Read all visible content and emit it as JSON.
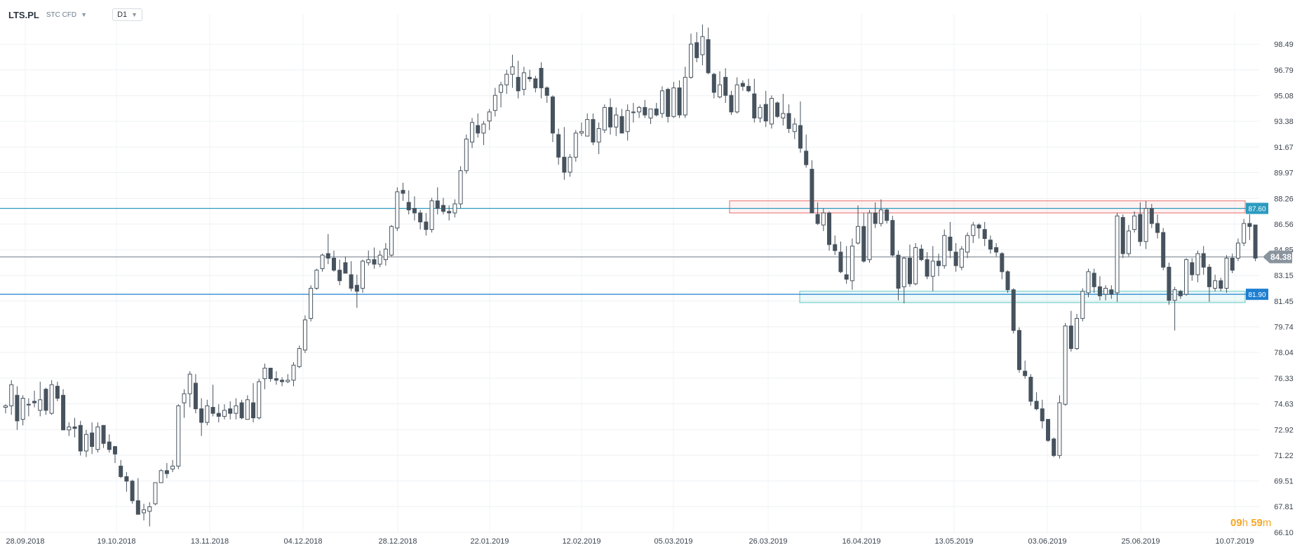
{
  "header": {
    "symbol": "LTS.PL",
    "instrument_type": "STC CFD",
    "timeframe": "D1"
  },
  "countdown": {
    "hours": "09",
    "h_unit": "h",
    "minutes": "59",
    "m_unit": "m"
  },
  "colors": {
    "bear": "#46525d",
    "bull_fill": "#ffffff",
    "bull_stroke": "#46525d",
    "line_87_60": "#2b9bbf",
    "line_81_90": "#1e7fd1",
    "current_line": "#8a949e",
    "resistance_zone": "#e86a6a",
    "support_zone": "#5cc7c0",
    "countdown": "#f5a623"
  },
  "chart_data": {
    "type": "candlestick",
    "ylim": [
      66.1,
      100.5
    ],
    "y_ticks": [
      "98.49",
      "96.79",
      "95.08",
      "93.38",
      "91.67",
      "89.97",
      "88.26",
      "86.56",
      "84.85",
      "83.15",
      "81.45",
      "79.74",
      "78.04",
      "76.33",
      "74.63",
      "72.92",
      "71.22",
      "69.51",
      "67.81",
      "66.10"
    ],
    "x_ticks": [
      "28.09.2018",
      "19.10.2018",
      "13.11.2018",
      "04.12.2018",
      "28.12.2018",
      "22.01.2019",
      "12.02.2019",
      "05.03.2019",
      "26.03.2019",
      "16.04.2019",
      "13.05.2019",
      "03.06.2019",
      "25.06.2019",
      "10.07.2019"
    ],
    "horizontal_lines": [
      {
        "label": "87.60",
        "value": 87.6
      },
      {
        "label": "81.90",
        "value": 81.9
      }
    ],
    "current_price": {
      "label": "84.38",
      "value": 84.38
    },
    "zones": [
      {
        "name": "resistance",
        "from": 87.3,
        "to": 88.1
      },
      {
        "name": "support",
        "from": 81.35,
        "to": 82.1
      }
    ],
    "candles": [
      [
        74.4,
        74.6,
        74.0,
        74.5
      ],
      [
        74.5,
        76.2,
        73.9,
        75.9
      ],
      [
        75.2,
        75.8,
        72.9,
        73.5
      ],
      [
        73.6,
        75.2,
        73.2,
        75.0
      ],
      [
        74.6,
        75.0,
        73.8,
        74.6
      ],
      [
        74.8,
        75.5,
        74.4,
        74.7
      ],
      [
        74.2,
        76.1,
        73.8,
        74.9
      ],
      [
        75.6,
        75.7,
        73.9,
        74.2
      ],
      [
        74.0,
        76.2,
        73.9,
        75.9
      ],
      [
        75.8,
        76.1,
        74.8,
        75.0
      ],
      [
        75.2,
        75.6,
        72.9,
        72.9
      ],
      [
        72.9,
        73.4,
        72.5,
        73.1
      ],
      [
        73.1,
        73.7,
        72.4,
        73.0
      ],
      [
        73.2,
        73.5,
        71.2,
        71.5
      ],
      [
        71.5,
        72.9,
        71.1,
        72.6
      ],
      [
        72.7,
        73.4,
        71.3,
        71.8
      ],
      [
        71.6,
        73.4,
        71.4,
        73.1
      ],
      [
        73.2,
        73.2,
        71.7,
        72.0
      ],
      [
        72.1,
        72.6,
        71.4,
        71.6
      ],
      [
        71.8,
        71.8,
        70.7,
        71.3
      ],
      [
        70.5,
        70.9,
        69.7,
        69.8
      ],
      [
        69.8,
        70.1,
        68.8,
        69.5
      ],
      [
        69.5,
        69.6,
        68.0,
        68.2
      ],
      [
        68.2,
        69.7,
        67.3,
        67.3
      ],
      [
        67.4,
        68.0,
        66.9,
        67.6
      ],
      [
        67.5,
        68.1,
        66.5,
        67.8
      ],
      [
        68.0,
        69.4,
        67.9,
        69.4
      ],
      [
        69.4,
        70.3,
        69.4,
        70.2
      ],
      [
        70.2,
        70.7,
        69.7,
        70.0
      ],
      [
        70.3,
        70.9,
        70.1,
        70.5
      ],
      [
        70.5,
        74.6,
        70.3,
        74.5
      ],
      [
        74.7,
        75.6,
        73.7,
        75.3
      ],
      [
        75.3,
        76.8,
        74.4,
        76.6
      ],
      [
        76.0,
        76.6,
        74.0,
        74.3
      ],
      [
        74.3,
        75.0,
        72.5,
        73.4
      ],
      [
        73.4,
        74.9,
        73.2,
        74.5
      ],
      [
        74.4,
        75.9,
        73.8,
        74.0
      ],
      [
        74.0,
        74.6,
        73.4,
        73.8
      ],
      [
        73.8,
        74.6,
        73.6,
        74.2
      ],
      [
        74.3,
        74.8,
        73.6,
        74.0
      ],
      [
        74.0,
        75.0,
        73.6,
        74.5
      ],
      [
        74.7,
        74.9,
        73.6,
        73.7
      ],
      [
        73.6,
        75.2,
        73.6,
        74.9
      ],
      [
        74.7,
        76.0,
        73.4,
        73.7
      ],
      [
        73.7,
        76.3,
        73.6,
        76.1
      ],
      [
        76.3,
        77.3,
        75.6,
        77.0
      ],
      [
        77.0,
        77.0,
        76.1,
        76.3
      ],
      [
        76.3,
        76.8,
        75.9,
        76.2
      ],
      [
        76.2,
        76.4,
        75.8,
        76.1
      ],
      [
        76.1,
        76.6,
        76.0,
        76.2
      ],
      [
        76.2,
        77.4,
        75.8,
        77.2
      ],
      [
        77.1,
        78.5,
        77.0,
        78.3
      ],
      [
        78.2,
        80.5,
        78.0,
        80.2
      ],
      [
        80.3,
        82.5,
        80.1,
        82.3
      ],
      [
        82.3,
        83.6,
        82.2,
        83.5
      ],
      [
        83.6,
        84.6,
        83.4,
        84.5
      ],
      [
        84.6,
        85.9,
        83.9,
        84.3
      ],
      [
        84.3,
        84.8,
        83.4,
        83.5
      ],
      [
        83.5,
        84.2,
        82.5,
        82.8
      ],
      [
        84.0,
        84.4,
        83.4,
        83.3
      ],
      [
        83.2,
        84.1,
        82.1,
        82.3
      ],
      [
        82.5,
        83.2,
        81.0,
        82.1
      ],
      [
        82.3,
        84.2,
        82.0,
        84.1
      ],
      [
        84.0,
        84.8,
        83.8,
        84.2
      ],
      [
        84.2,
        85.0,
        83.6,
        83.9
      ],
      [
        83.9,
        84.8,
        83.7,
        84.5
      ],
      [
        84.2,
        85.3,
        83.8,
        84.9
      ],
      [
        84.5,
        86.5,
        84.4,
        86.4
      ],
      [
        86.3,
        89.0,
        86.1,
        88.7
      ],
      [
        88.8,
        89.3,
        88.1,
        88.6
      ],
      [
        88.0,
        88.8,
        87.2,
        87.5
      ],
      [
        87.6,
        88.4,
        86.8,
        87.3
      ],
      [
        87.3,
        87.5,
        86.2,
        86.7
      ],
      [
        86.7,
        87.3,
        85.8,
        86.2
      ],
      [
        86.2,
        88.3,
        86.0,
        88.1
      ],
      [
        88.1,
        89.0,
        87.2,
        87.6
      ],
      [
        87.8,
        88.3,
        87.2,
        87.4
      ],
      [
        87.4,
        87.8,
        86.8,
        87.3
      ],
      [
        87.3,
        88.2,
        87.0,
        87.9
      ],
      [
        87.9,
        90.4,
        87.6,
        90.1
      ],
      [
        90.1,
        92.5,
        89.9,
        92.2
      ],
      [
        92.0,
        93.6,
        91.6,
        93.3
      ],
      [
        93.1,
        93.9,
        92.3,
        92.6
      ],
      [
        92.6,
        93.4,
        91.8,
        93.2
      ],
      [
        93.4,
        94.2,
        92.8,
        94.0
      ],
      [
        94.1,
        95.6,
        93.7,
        95.1
      ],
      [
        95.3,
        96.0,
        94.3,
        95.8
      ],
      [
        95.8,
        96.8,
        95.2,
        96.5
      ],
      [
        96.5,
        97.8,
        95.6,
        97.0
      ],
      [
        96.3,
        97.4,
        94.9,
        95.4
      ],
      [
        95.5,
        97.0,
        95.1,
        96.6
      ],
      [
        96.3,
        96.8,
        96.0,
        96.2
      ],
      [
        96.2,
        96.4,
        95.3,
        95.6
      ],
      [
        96.9,
        97.3,
        94.9,
        95.6
      ],
      [
        95.6,
        95.7,
        94.6,
        95.1
      ],
      [
        95.0,
        95.1,
        92.0,
        92.6
      ],
      [
        92.5,
        92.9,
        90.5,
        91.0
      ],
      [
        91.0,
        93.0,
        89.5,
        90.0
      ],
      [
        90.0,
        91.2,
        89.7,
        91.0
      ],
      [
        91.0,
        92.8,
        90.7,
        92.6
      ],
      [
        92.6,
        93.3,
        92.4,
        92.7
      ],
      [
        92.4,
        93.9,
        92.4,
        93.5
      ],
      [
        93.5,
        93.9,
        91.8,
        92.0
      ],
      [
        92.0,
        93.3,
        91.2,
        92.9
      ],
      [
        92.8,
        94.5,
        92.6,
        94.3
      ],
      [
        94.3,
        94.9,
        92.5,
        93.0
      ],
      [
        93.0,
        94.3,
        92.4,
        93.8
      ],
      [
        93.7,
        94.2,
        92.6,
        92.6
      ],
      [
        92.7,
        94.5,
        92.1,
        94.1
      ],
      [
        94.0,
        94.6,
        93.3,
        94.0
      ],
      [
        94.0,
        94.4,
        93.6,
        94.3
      ],
      [
        94.3,
        94.8,
        93.6,
        93.8
      ],
      [
        93.6,
        94.1,
        93.2,
        94.2
      ],
      [
        94.2,
        94.6,
        93.7,
        93.8
      ],
      [
        93.9,
        95.7,
        93.6,
        95.4
      ],
      [
        95.5,
        95.6,
        93.3,
        93.7
      ],
      [
        93.7,
        96.0,
        93.6,
        95.6
      ],
      [
        95.6,
        96.1,
        93.6,
        93.8
      ],
      [
        93.8,
        97.0,
        93.6,
        96.3
      ],
      [
        96.3,
        99.2,
        96.2,
        98.5
      ],
      [
        98.6,
        99.3,
        97.3,
        97.6
      ],
      [
        97.8,
        99.8,
        97.1,
        99.0
      ],
      [
        98.8,
        99.6,
        96.5,
        96.6
      ],
      [
        96.5,
        96.6,
        94.9,
        95.3
      ],
      [
        95.0,
        96.7,
        94.9,
        95.8
      ],
      [
        96.3,
        96.9,
        94.6,
        95.1
      ],
      [
        95.1,
        95.4,
        93.8,
        94.0
      ],
      [
        94.0,
        96.3,
        93.9,
        95.8
      ],
      [
        95.9,
        96.1,
        95.4,
        95.7
      ],
      [
        95.7,
        96.2,
        95.3,
        95.4
      ],
      [
        95.2,
        96.2,
        93.3,
        93.6
      ],
      [
        93.6,
        94.5,
        93.3,
        94.3
      ],
      [
        94.5,
        95.4,
        93.0,
        93.4
      ],
      [
        93.2,
        95.1,
        92.9,
        94.9
      ],
      [
        94.6,
        94.7,
        93.6,
        93.7
      ],
      [
        93.6,
        95.2,
        93.1,
        93.9
      ],
      [
        93.9,
        94.5,
        92.6,
        92.9
      ],
      [
        92.7,
        93.6,
        92.2,
        93.2
      ],
      [
        93.1,
        94.7,
        91.3,
        91.6
      ],
      [
        91.4,
        92.5,
        90.3,
        90.5
      ],
      [
        90.2,
        90.8,
        87.4,
        87.3
      ],
      [
        87.2,
        88.0,
        86.5,
        86.6
      ],
      [
        86.5,
        87.6,
        86.1,
        87.3
      ],
      [
        87.3,
        87.4,
        84.8,
        85.2
      ],
      [
        85.2,
        85.8,
        84.5,
        84.8
      ],
      [
        84.7,
        85.4,
        83.3,
        83.4
      ],
      [
        83.2,
        85.1,
        82.6,
        82.9
      ],
      [
        82.8,
        85.6,
        82.2,
        85.1
      ],
      [
        85.3,
        87.8,
        85.2,
        86.4
      ],
      [
        86.4,
        87.3,
        84.0,
        84.1
      ],
      [
        84.2,
        87.5,
        84.0,
        87.3
      ],
      [
        87.3,
        88.0,
        86.3,
        86.6
      ],
      [
        86.6,
        88.2,
        86.4,
        87.5
      ],
      [
        87.5,
        87.6,
        86.6,
        86.8
      ],
      [
        86.8,
        87.1,
        84.4,
        84.5
      ],
      [
        84.5,
        84.8,
        81.5,
        82.3
      ],
      [
        82.4,
        84.4,
        81.3,
        84.3
      ],
      [
        84.3,
        85.2,
        82.4,
        82.6
      ],
      [
        82.6,
        85.3,
        82.5,
        85.0
      ],
      [
        84.9,
        85.2,
        84.1,
        84.2
      ],
      [
        84.2,
        84.7,
        82.9,
        83.1
      ],
      [
        83.1,
        85.1,
        82.1,
        84.1
      ],
      [
        84.1,
        84.6,
        83.1,
        83.8
      ],
      [
        83.8,
        86.2,
        83.6,
        85.8
      ],
      [
        85.7,
        86.7,
        84.3,
        84.8
      ],
      [
        84.7,
        85.3,
        83.4,
        83.8
      ],
      [
        83.7,
        85.1,
        83.5,
        84.9
      ],
      [
        84.7,
        86.0,
        84.3,
        85.8
      ],
      [
        85.8,
        86.7,
        85.3,
        86.5
      ],
      [
        86.5,
        86.6,
        85.6,
        86.3
      ],
      [
        86.2,
        86.7,
        85.1,
        85.6
      ],
      [
        85.5,
        85.8,
        84.6,
        84.9
      ],
      [
        85.0,
        85.3,
        84.4,
        84.7
      ],
      [
        84.6,
        84.7,
        82.9,
        83.4
      ],
      [
        83.4,
        83.5,
        82.0,
        82.2
      ],
      [
        82.2,
        82.3,
        79.3,
        79.5
      ],
      [
        79.5,
        79.7,
        76.7,
        76.9
      ],
      [
        76.8,
        77.5,
        76.3,
        76.5
      ],
      [
        76.4,
        76.6,
        74.5,
        74.8
      ],
      [
        74.8,
        75.4,
        74.2,
        74.3
      ],
      [
        74.3,
        74.9,
        73.0,
        73.5
      ],
      [
        73.6,
        73.6,
        72.1,
        72.2
      ],
      [
        72.3,
        72.4,
        71.1,
        71.2
      ],
      [
        71.2,
        75.2,
        71.0,
        74.7
      ],
      [
        74.6,
        80.0,
        74.5,
        79.8
      ],
      [
        79.8,
        80.8,
        78.1,
        78.3
      ],
      [
        78.3,
        80.6,
        78.2,
        80.3
      ],
      [
        80.3,
        82.3,
        80.1,
        82.1
      ],
      [
        82.0,
        83.6,
        81.7,
        83.4
      ],
      [
        83.3,
        83.6,
        82.0,
        82.4
      ],
      [
        82.4,
        83.1,
        81.5,
        81.8
      ],
      [
        81.9,
        82.5,
        81.5,
        82.3
      ],
      [
        82.2,
        82.5,
        81.6,
        81.9
      ],
      [
        82.0,
        87.3,
        81.4,
        87.1
      ],
      [
        87.0,
        87.2,
        84.3,
        84.6
      ],
      [
        84.6,
        86.5,
        84.4,
        86.1
      ],
      [
        86.2,
        87.4,
        86.0,
        87.1
      ],
      [
        87.2,
        88.0,
        85.1,
        85.4
      ],
      [
        85.4,
        88.1,
        84.9,
        87.6
      ],
      [
        87.6,
        87.9,
        86.3,
        86.6
      ],
      [
        86.6,
        87.2,
        85.6,
        86.0
      ],
      [
        86.0,
        86.3,
        83.5,
        83.7
      ],
      [
        83.7,
        84.0,
        81.2,
        81.5
      ],
      [
        81.5,
        82.4,
        79.5,
        82.2
      ],
      [
        82.1,
        82.2,
        81.6,
        81.8
      ],
      [
        81.9,
        84.3,
        81.8,
        84.2
      ],
      [
        84.0,
        84.3,
        82.8,
        83.2
      ],
      [
        83.2,
        84.8,
        82.7,
        84.6
      ],
      [
        84.6,
        85.1,
        83.2,
        83.7
      ],
      [
        83.7,
        83.9,
        81.4,
        82.4
      ],
      [
        82.3,
        83.2,
        82.1,
        82.8
      ],
      [
        82.8,
        83.0,
        82.1,
        82.3
      ],
      [
        82.3,
        84.5,
        82.0,
        84.3
      ],
      [
        84.3,
        84.6,
        83.3,
        83.5
      ],
      [
        84.3,
        85.6,
        84.1,
        85.3
      ],
      [
        85.3,
        86.9,
        85.1,
        86.6
      ],
      [
        86.6,
        87.2,
        85.5,
        86.4
      ],
      [
        86.5,
        86.5,
        84.1,
        84.3
      ]
    ]
  }
}
